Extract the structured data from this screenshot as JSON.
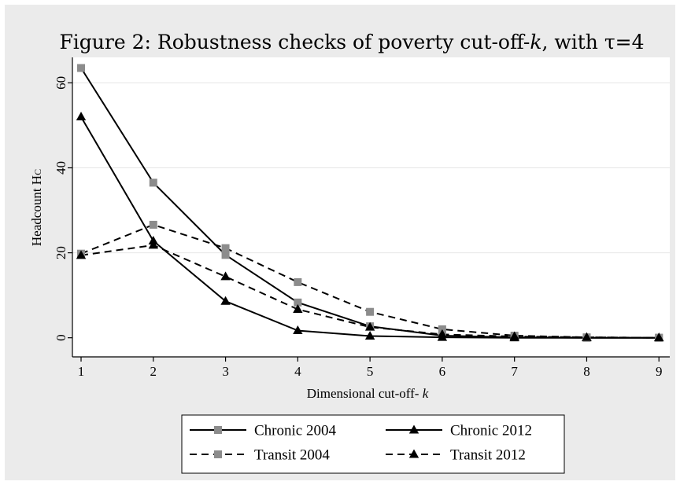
{
  "chart_data": {
    "type": "line",
    "title": "Figure 2: Robustness checks of poverty cut-off-",
    "title_k": "k",
    "title_suffix": ", with τ=4",
    "xlabel": "Dimensional cut-off- ",
    "xlabel_k": "k",
    "ylabel": "Headcount H",
    "ylabel_sub": "C",
    "x": [
      1,
      2,
      3,
      4,
      5,
      6,
      7,
      8,
      9
    ],
    "xlim": [
      0.88,
      9.15
    ],
    "ylim": [
      -4.5,
      66
    ],
    "yticks": [
      0,
      20,
      40,
      60
    ],
    "grid": "horizontal",
    "legend_position": "bottom",
    "colors": {
      "grey_marker": "#8c8c8c",
      "black": "#000000",
      "background": "#ebebeb",
      "grid": "#ffffff"
    },
    "series": [
      {
        "name": "Chronic 2004",
        "values": [
          63.5,
          36.5,
          19.5,
          8.3,
          2.7,
          0.5,
          0.1,
          0.0,
          0.0
        ],
        "dash": "solid",
        "marker": "square"
      },
      {
        "name": "Chronic 2012",
        "values": [
          52.0,
          22.8,
          8.6,
          1.7,
          0.4,
          0.1,
          0.0,
          0.0,
          0.0
        ],
        "dash": "solid",
        "marker": "triangle"
      },
      {
        "name": "Transit 2004",
        "values": [
          19.8,
          26.6,
          21.1,
          13.1,
          6.1,
          2.0,
          0.5,
          0.1,
          0.0
        ],
        "dash": "dashed",
        "marker": "square"
      },
      {
        "name": "Transit 2012",
        "values": [
          19.4,
          21.8,
          14.4,
          6.7,
          2.5,
          0.8,
          0.3,
          0.1,
          0.0
        ],
        "dash": "dashed",
        "marker": "triangle"
      }
    ]
  }
}
